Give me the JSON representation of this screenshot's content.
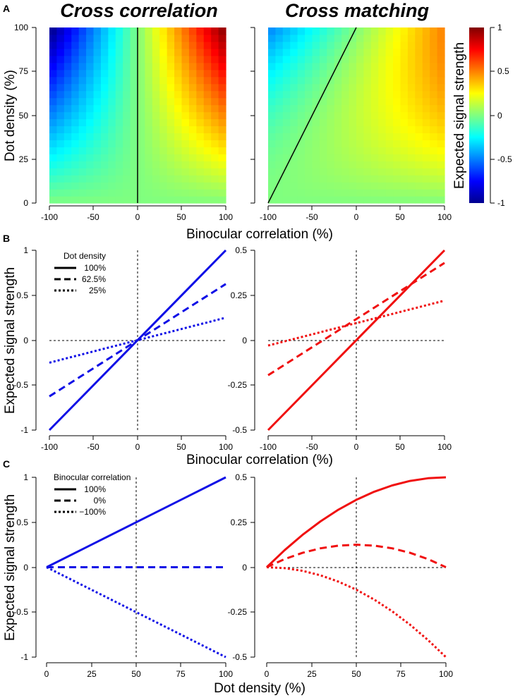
{
  "chart_data": [
    {
      "panel": "A",
      "type": "heatmap",
      "title": "Cross correlation",
      "title_color": "#1a1adf",
      "xlabel": "Binocular correlation (%)",
      "ylabel": "Dot density (%)",
      "xlim": [
        -100,
        100
      ],
      "ylim": [
        0,
        100
      ],
      "xticks": [
        "-100",
        "-50",
        "0",
        "50",
        "100"
      ],
      "yticks": [
        "0",
        "25",
        "50",
        "75",
        "100"
      ],
      "model": "correlation",
      "zero_line": "x = 0",
      "grid": [
        24,
        25
      ]
    },
    {
      "panel": "A",
      "type": "heatmap",
      "title": "Cross matching",
      "title_color": "#e01818",
      "xlabel": "Binocular correlation (%)",
      "xlim": [
        -100,
        100
      ],
      "ylim": [
        0,
        100
      ],
      "xticks": [
        "-100",
        "-50",
        "0",
        "50",
        "100"
      ],
      "model": "matching",
      "zero_line": "density = 100 + correlation",
      "grid": [
        24,
        25
      ]
    },
    {
      "type": "colorbar",
      "label": "Expected signal strength",
      "range": [
        -1,
        1
      ],
      "ticks": [
        "-1",
        "-0.5",
        "0",
        "0.5",
        "1"
      ]
    },
    {
      "panel": "B",
      "type": "line",
      "color": "#1010e6",
      "xlabel": "Binocular correlation (%)",
      "ylabel": "Expected signal strength",
      "xlim": [
        -100,
        100
      ],
      "ylim": [
        -1,
        1
      ],
      "xticks": [
        "-100",
        "-50",
        "0",
        "50",
        "100"
      ],
      "yticks": [
        "-1",
        "-0.5",
        "0",
        "0.5",
        "1"
      ],
      "legend_title": "Dot density",
      "legend_location": "top-left",
      "series": [
        {
          "name": "100%",
          "style": "solid",
          "x": [
            -100,
            100
          ],
          "y": [
            -1,
            1
          ]
        },
        {
          "name": "62.5%",
          "style": "dashed",
          "x": [
            -100,
            100
          ],
          "y": [
            -0.625,
            0.625
          ]
        },
        {
          "name": "25%",
          "style": "dotted",
          "x": [
            -100,
            100
          ],
          "y": [
            -0.25,
            0.25
          ]
        }
      ]
    },
    {
      "panel": "B",
      "type": "line",
      "color": "#f01010",
      "xlabel": "Binocular correlation (%)",
      "xlim": [
        -100,
        100
      ],
      "ylim": [
        -0.5,
        0.5
      ],
      "xticks": [
        "-100",
        "-50",
        "0",
        "50",
        "100"
      ],
      "yticks": [
        "-0.5",
        "-0.25",
        "0",
        "0.25",
        "0.5"
      ],
      "series": [
        {
          "name": "100%",
          "style": "solid",
          "x": [
            -100,
            100
          ],
          "y": [
            -0.5,
            0.5
          ]
        },
        {
          "name": "62.5%",
          "style": "dashed",
          "x": [
            -100,
            100
          ],
          "y": [
            -0.195,
            0.43
          ]
        },
        {
          "name": "25%",
          "style": "dotted",
          "x": [
            -100,
            100
          ],
          "y": [
            -0.03,
            0.22
          ]
        }
      ]
    },
    {
      "panel": "C",
      "type": "line",
      "color": "#1010e6",
      "xlabel": "Dot density (%)",
      "ylabel": "Expected signal strength",
      "xlim": [
        0,
        100
      ],
      "ylim": [
        -1,
        1
      ],
      "xticks": [
        "0",
        "25",
        "50",
        "75",
        "100"
      ],
      "yticks": [
        "-1",
        "-0.5",
        "0",
        "0.5",
        "1"
      ],
      "legend_title": "Binocular correlation",
      "legend_location": "top-left",
      "series": [
        {
          "name": "100%",
          "style": "solid",
          "x": [
            0,
            100
          ],
          "y": [
            0,
            1
          ]
        },
        {
          "name": "0%",
          "style": "dashed",
          "x": [
            0,
            100
          ],
          "y": [
            0,
            0
          ]
        },
        {
          "name": "−100%",
          "style": "dotted",
          "x": [
            0,
            100
          ],
          "y": [
            0,
            -1
          ]
        }
      ]
    },
    {
      "panel": "C",
      "type": "line",
      "color": "#f01010",
      "xlabel": "Dot density (%)",
      "xlim": [
        0,
        100
      ],
      "ylim": [
        -0.5,
        0.5
      ],
      "xticks": [
        "0",
        "25",
        "50",
        "75",
        "100"
      ],
      "yticks": [
        "-0.5",
        "-0.25",
        "0",
        "0.25",
        "0.5"
      ],
      "series": [
        {
          "name": "100%",
          "style": "solid",
          "x": [
            0,
            10,
            20,
            30,
            40,
            50,
            60,
            70,
            80,
            90,
            100
          ],
          "y": [
            0,
            0.095,
            0.18,
            0.255,
            0.32,
            0.375,
            0.42,
            0.455,
            0.48,
            0.495,
            0.5
          ]
        },
        {
          "name": "0%",
          "style": "dashed",
          "x": [
            0,
            10,
            20,
            30,
            40,
            50,
            60,
            70,
            80,
            90,
            100
          ],
          "y": [
            0,
            0.045,
            0.08,
            0.105,
            0.12,
            0.125,
            0.12,
            0.105,
            0.08,
            0.045,
            0
          ]
        },
        {
          "name": "−100%",
          "style": "dotted",
          "x": [
            0,
            10,
            20,
            30,
            40,
            50,
            60,
            70,
            80,
            90,
            100
          ],
          "y": [
            0,
            -0.005,
            -0.02,
            -0.045,
            -0.08,
            -0.125,
            -0.18,
            -0.245,
            -0.32,
            -0.405,
            -0.5
          ]
        }
      ]
    }
  ],
  "panel_labels": [
    "A",
    "B",
    "C"
  ]
}
